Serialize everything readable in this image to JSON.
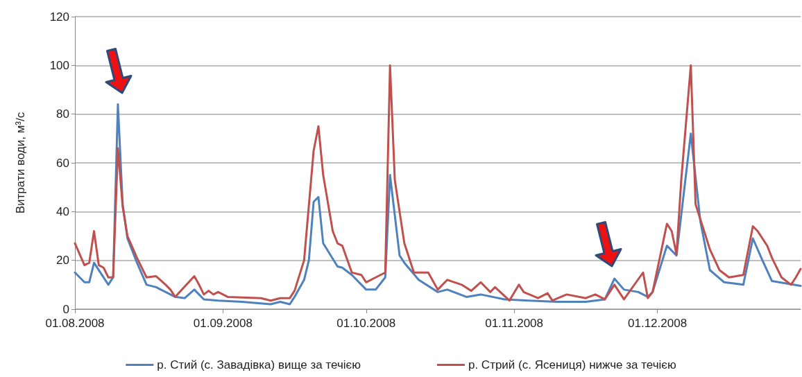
{
  "chart_data": {
    "type": "line",
    "ylabel": "Витрати води, м³/с",
    "xlim": [
      "2008-08-01",
      "2008-12-31"
    ],
    "xticks": [
      {
        "value": "2008-08-01",
        "label": "01.08.2008"
      },
      {
        "value": "2008-09-01",
        "label": "01.09.2008"
      },
      {
        "value": "2008-10-01",
        "label": "01.10.2008"
      },
      {
        "value": "2008-11-01",
        "label": "01.11.2008"
      },
      {
        "value": "2008-12-01",
        "label": "01.12.2008"
      }
    ],
    "ylim": [
      0,
      120
    ],
    "yticks": [
      0,
      20,
      40,
      60,
      80,
      100,
      120
    ],
    "grid": "y",
    "legend": "bottom",
    "marker": "none",
    "line_style": "solid",
    "series": [
      {
        "name": "р. Стий (с. Завадівка) вище за течією",
        "color": "#4f81bd",
        "x": [
          "2008-08-01",
          "2008-08-03",
          "2008-08-04",
          "2008-08-05",
          "2008-08-08",
          "2008-08-09",
          "2008-08-10",
          "2008-08-11",
          "2008-08-12",
          "2008-08-14",
          "2008-08-16",
          "2008-08-18",
          "2008-08-20",
          "2008-08-22",
          "2008-08-24",
          "2008-08-26",
          "2008-08-28",
          "2008-08-31",
          "2008-09-05",
          "2008-09-11",
          "2008-09-13",
          "2008-09-15",
          "2008-09-16",
          "2008-09-18",
          "2008-09-19",
          "2008-09-20",
          "2008-09-21",
          "2008-09-22",
          "2008-09-25",
          "2008-09-26",
          "2008-09-28",
          "2008-10-01",
          "2008-10-03",
          "2008-10-05",
          "2008-10-06",
          "2008-10-08",
          "2008-10-09",
          "2008-10-12",
          "2008-10-16",
          "2008-10-18",
          "2008-10-22",
          "2008-10-25",
          "2008-10-30",
          "2008-11-04",
          "2008-11-10",
          "2008-11-16",
          "2008-11-20",
          "2008-11-22",
          "2008-11-24",
          "2008-11-27",
          "2008-11-29",
          "2008-11-30",
          "2008-12-03",
          "2008-12-05",
          "2008-12-08",
          "2008-12-10",
          "2008-12-12",
          "2008-12-15",
          "2008-12-19",
          "2008-12-21",
          "2008-12-23",
          "2008-12-25",
          "2008-12-31"
        ],
        "values": [
          15,
          11,
          11,
          19,
          10,
          13,
          84,
          43,
          29,
          19,
          10,
          9,
          7,
          5,
          4.5,
          8,
          4,
          3.5,
          3,
          2,
          3,
          2,
          5,
          12,
          20,
          44,
          46,
          27,
          17.5,
          17,
          14,
          8,
          8,
          13,
          55,
          22,
          19,
          12,
          7,
          8,
          5,
          6,
          4,
          3.5,
          3,
          3,
          4,
          12.5,
          8,
          7,
          5,
          7,
          26,
          22,
          72,
          36,
          16,
          11,
          10,
          29,
          20,
          11.5,
          9.5
        ]
      },
      {
        "name": "р. Стрий (с. Ясениця) нижче за течією",
        "color": "#c0504d",
        "x": [
          "2008-08-01",
          "2008-08-03",
          "2008-08-04",
          "2008-08-05",
          "2008-08-06",
          "2008-08-07",
          "2008-08-08",
          "2008-08-09",
          "2008-08-10",
          "2008-08-11",
          "2008-08-12",
          "2008-08-14",
          "2008-08-16",
          "2008-08-18",
          "2008-08-20",
          "2008-08-21",
          "2008-08-22",
          "2008-08-26",
          "2008-08-27",
          "2008-08-28",
          "2008-08-29",
          "2008-08-30",
          "2008-08-31",
          "2008-09-02",
          "2008-09-09",
          "2008-09-11",
          "2008-09-13",
          "2008-09-15",
          "2008-09-16",
          "2008-09-18",
          "2008-09-20",
          "2008-09-21",
          "2008-09-22",
          "2008-09-24",
          "2008-09-25",
          "2008-09-26",
          "2008-09-28",
          "2008-09-30",
          "2008-10-01",
          "2008-10-03",
          "2008-10-05",
          "2008-10-06",
          "2008-10-07",
          "2008-10-09",
          "2008-10-11",
          "2008-10-14",
          "2008-10-16",
          "2008-10-18",
          "2008-10-21",
          "2008-10-23",
          "2008-10-25",
          "2008-10-27",
          "2008-10-28",
          "2008-10-31",
          "2008-11-02",
          "2008-11-03",
          "2008-11-06",
          "2008-11-08",
          "2008-11-09",
          "2008-11-12",
          "2008-11-16",
          "2008-11-18",
          "2008-11-20",
          "2008-11-22",
          "2008-11-24",
          "2008-11-28",
          "2008-11-29",
          "2008-11-30",
          "2008-12-03",
          "2008-12-04",
          "2008-12-05",
          "2008-12-06",
          "2008-12-08",
          "2008-12-09",
          "2008-12-12",
          "2008-12-14",
          "2008-12-16",
          "2008-12-19",
          "2008-12-21",
          "2008-12-22",
          "2008-12-24",
          "2008-12-25",
          "2008-12-27",
          "2008-12-29",
          "2008-12-30",
          "2008-12-31"
        ],
        "values": [
          27,
          18,
          19,
          32,
          18,
          17,
          13,
          13,
          66,
          42,
          30,
          21,
          13,
          13.5,
          10,
          8,
          5,
          13.5,
          10,
          6,
          7.5,
          6,
          7,
          5,
          4.5,
          3.5,
          4.5,
          4.5,
          7.5,
          20,
          65,
          75,
          55,
          32,
          27,
          26,
          15,
          14,
          11,
          13,
          15,
          100,
          53,
          27,
          15,
          15,
          8,
          12,
          10,
          7.5,
          11,
          7,
          9,
          3.5,
          10,
          7,
          4.5,
          6.5,
          3.5,
          6,
          4.5,
          6,
          4,
          10,
          4,
          15,
          4.5,
          7,
          35,
          32,
          22.5,
          53,
          100,
          43,
          24.5,
          16,
          13,
          14,
          34,
          32,
          26,
          21,
          13,
          10,
          13,
          16.5
        ]
      }
    ]
  }
}
